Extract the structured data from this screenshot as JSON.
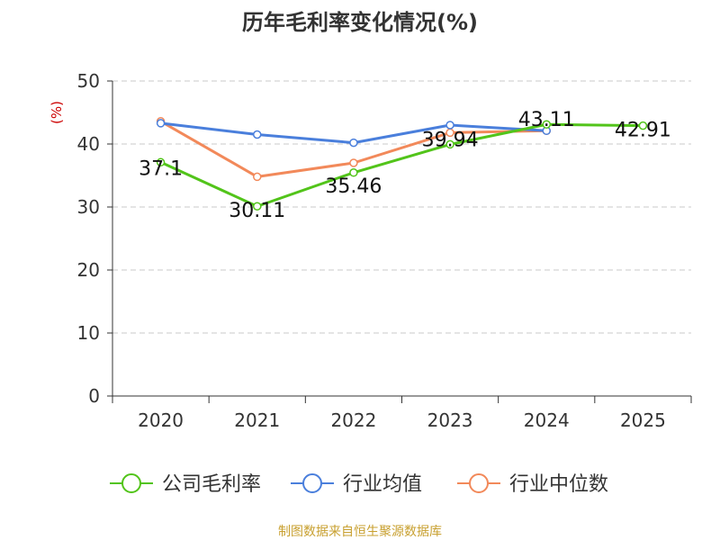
{
  "chart_data": {
    "type": "line",
    "title": "历年毛利率变化情况(%)",
    "ylabel": "(%)",
    "xlabel": "",
    "categories": [
      "2020",
      "2021",
      "2022",
      "2023",
      "2024",
      "2025"
    ],
    "ylim": [
      0,
      50
    ],
    "yticks": [
      0,
      10,
      20,
      30,
      40,
      50
    ],
    "grid": true,
    "legend_position": "bottom",
    "series": [
      {
        "name": "公司毛利率",
        "color": "#52c41a",
        "values": [
          37.1,
          30.11,
          35.46,
          39.94,
          43.11,
          42.91
        ],
        "labels": [
          "37.1",
          "30.11",
          "35.46",
          "39.94",
          "43.11",
          "42.91"
        ]
      },
      {
        "name": "行业均值",
        "color": "#4a7fdc",
        "values": [
          43.3,
          41.5,
          40.2,
          43.0,
          42.1,
          null
        ]
      },
      {
        "name": "行业中位数",
        "color": "#f2895a",
        "values": [
          43.6,
          34.8,
          37.0,
          41.8,
          42.1,
          null
        ]
      }
    ],
    "source": "制图数据来自恒生聚源数据库"
  }
}
